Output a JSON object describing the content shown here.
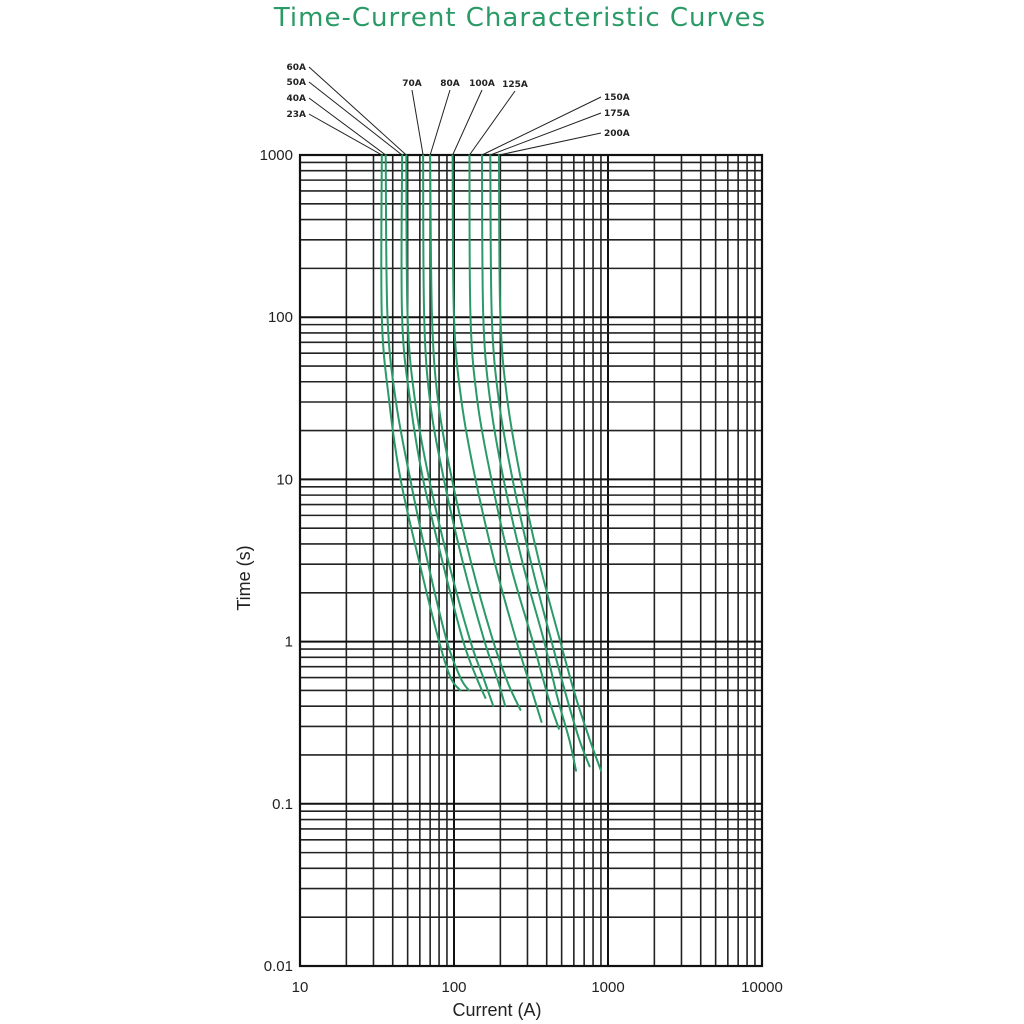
{
  "chart_data": {
    "type": "line",
    "title": "Time-Current Characteristic Curves",
    "xlabel": "Current (A)",
    "ylabel": "Time (s)",
    "x_scale": "log",
    "y_scale": "log",
    "xlim": [
      10,
      10000
    ],
    "ylim": [
      0.01,
      1000
    ],
    "x_ticks": [
      "10",
      "100",
      "1000",
      "10000"
    ],
    "y_ticks": [
      "1000",
      "100",
      "10",
      "1",
      "0.1",
      "0.01"
    ],
    "grid": true,
    "curve_color": "#2a9a66",
    "series": [
      {
        "name": "23A",
        "points": [
          [
            34,
            1000
          ],
          [
            34,
            100
          ],
          [
            38,
            30
          ],
          [
            45,
            10
          ],
          [
            60,
            3
          ],
          [
            80,
            1
          ],
          [
            95,
            0.6
          ],
          [
            110,
            0.5
          ]
        ]
      },
      {
        "name": "40A",
        "points": [
          [
            36,
            1000
          ],
          [
            37,
            100
          ],
          [
            42,
            30
          ],
          [
            52,
            10
          ],
          [
            68,
            3
          ],
          [
            90,
            1
          ],
          [
            110,
            0.6
          ],
          [
            125,
            0.5
          ]
        ]
      },
      {
        "name": "50A",
        "points": [
          [
            46,
            1000
          ],
          [
            46,
            100
          ],
          [
            52,
            30
          ],
          [
            63,
            10
          ],
          [
            85,
            3
          ],
          [
            115,
            1
          ],
          [
            140,
            0.6
          ],
          [
            160,
            0.45
          ]
        ]
      },
      {
        "name": "60A",
        "points": [
          [
            49,
            1000
          ],
          [
            50,
            100
          ],
          [
            56,
            30
          ],
          [
            69,
            10
          ],
          [
            93,
            3
          ],
          [
            128,
            1
          ],
          [
            155,
            0.6
          ],
          [
            180,
            0.4
          ]
        ]
      },
      {
        "name": "70A",
        "points": [
          [
            63,
            1000
          ],
          [
            64,
            100
          ],
          [
            70,
            30
          ],
          [
            86,
            10
          ],
          [
            115,
            3
          ],
          [
            158,
            1
          ],
          [
            190,
            0.6
          ],
          [
            215,
            0.4
          ]
        ]
      },
      {
        "name": "80A",
        "points": [
          [
            70,
            1000
          ],
          [
            72,
            100
          ],
          [
            79,
            30
          ],
          [
            97,
            10
          ],
          [
            130,
            3
          ],
          [
            180,
            1
          ],
          [
            225,
            0.55
          ],
          [
            270,
            0.38
          ]
        ]
      },
      {
        "name": "100A",
        "points": [
          [
            98,
            1000
          ],
          [
            100,
            100
          ],
          [
            112,
            30
          ],
          [
            138,
            10
          ],
          [
            185,
            3
          ],
          [
            255,
            1
          ],
          [
            320,
            0.5
          ],
          [
            370,
            0.32
          ]
        ]
      },
      {
        "name": "125A",
        "points": [
          [
            126,
            1000
          ],
          [
            128,
            100
          ],
          [
            142,
            30
          ],
          [
            175,
            10
          ],
          [
            232,
            3
          ],
          [
            325,
            1
          ],
          [
            410,
            0.45
          ],
          [
            480,
            0.29
          ]
        ]
      },
      {
        "name": "150A",
        "points": [
          [
            152,
            1000
          ],
          [
            155,
            100
          ],
          [
            172,
            30
          ],
          [
            210,
            10
          ],
          [
            280,
            3
          ],
          [
            385,
            1
          ],
          [
            470,
            0.45
          ],
          [
            560,
            0.25
          ],
          [
            620,
            0.16
          ]
        ]
      },
      {
        "name": "175A",
        "points": [
          [
            172,
            1000
          ],
          [
            176,
            100
          ],
          [
            196,
            30
          ],
          [
            240,
            10
          ],
          [
            318,
            3
          ],
          [
            430,
            1
          ],
          [
            540,
            0.45
          ],
          [
            650,
            0.25
          ],
          [
            760,
            0.17
          ]
        ]
      },
      {
        "name": "200A",
        "points": [
          [
            196,
            1000
          ],
          [
            200,
            100
          ],
          [
            223,
            30
          ],
          [
            272,
            10
          ],
          [
            360,
            3
          ],
          [
            490,
            1
          ],
          [
            620,
            0.45
          ],
          [
            760,
            0.25
          ],
          [
            900,
            0.16
          ]
        ]
      }
    ]
  }
}
